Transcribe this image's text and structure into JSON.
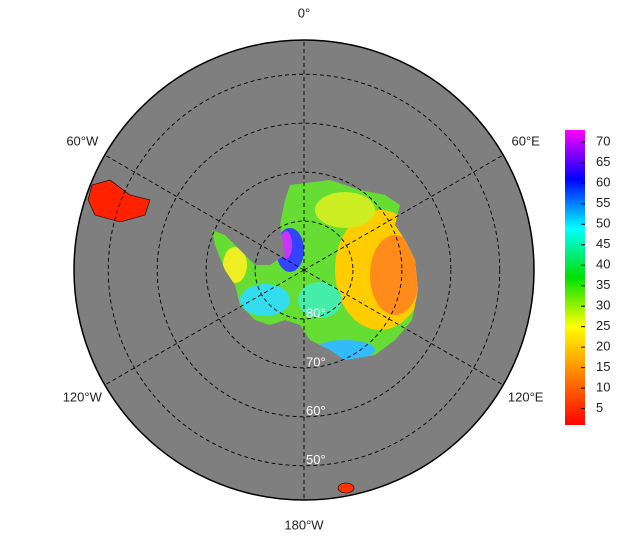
{
  "map": {
    "lat_lim": [
      43,
      90
    ],
    "meridians": [
      {
        "lon": 0,
        "label": "0°"
      },
      {
        "lon": 60,
        "label": "60°E"
      },
      {
        "lon": 120,
        "label": "120°E"
      },
      {
        "lon": 180,
        "label": "180°W"
      },
      {
        "lon": -120,
        "label": "120°W"
      },
      {
        "lon": -60,
        "label": "60°W"
      }
    ],
    "parallels": [
      {
        "lat": 80,
        "label": "80°"
      },
      {
        "lat": 70,
        "label": "70°"
      },
      {
        "lat": 60,
        "label": "60°"
      },
      {
        "lat": 50,
        "label": "50°"
      }
    ],
    "colorbar": {
      "lim": [
        1,
        73
      ],
      "ticks": [
        5,
        10,
        15,
        20,
        25,
        30,
        35,
        40,
        45,
        50,
        55,
        60,
        65,
        70
      ],
      "colors": [
        "#ff0000",
        "#ff8000",
        "#ffff00",
        "#00e000",
        "#00ffff",
        "#0000ff",
        "#ff00ff"
      ]
    }
  }
}
